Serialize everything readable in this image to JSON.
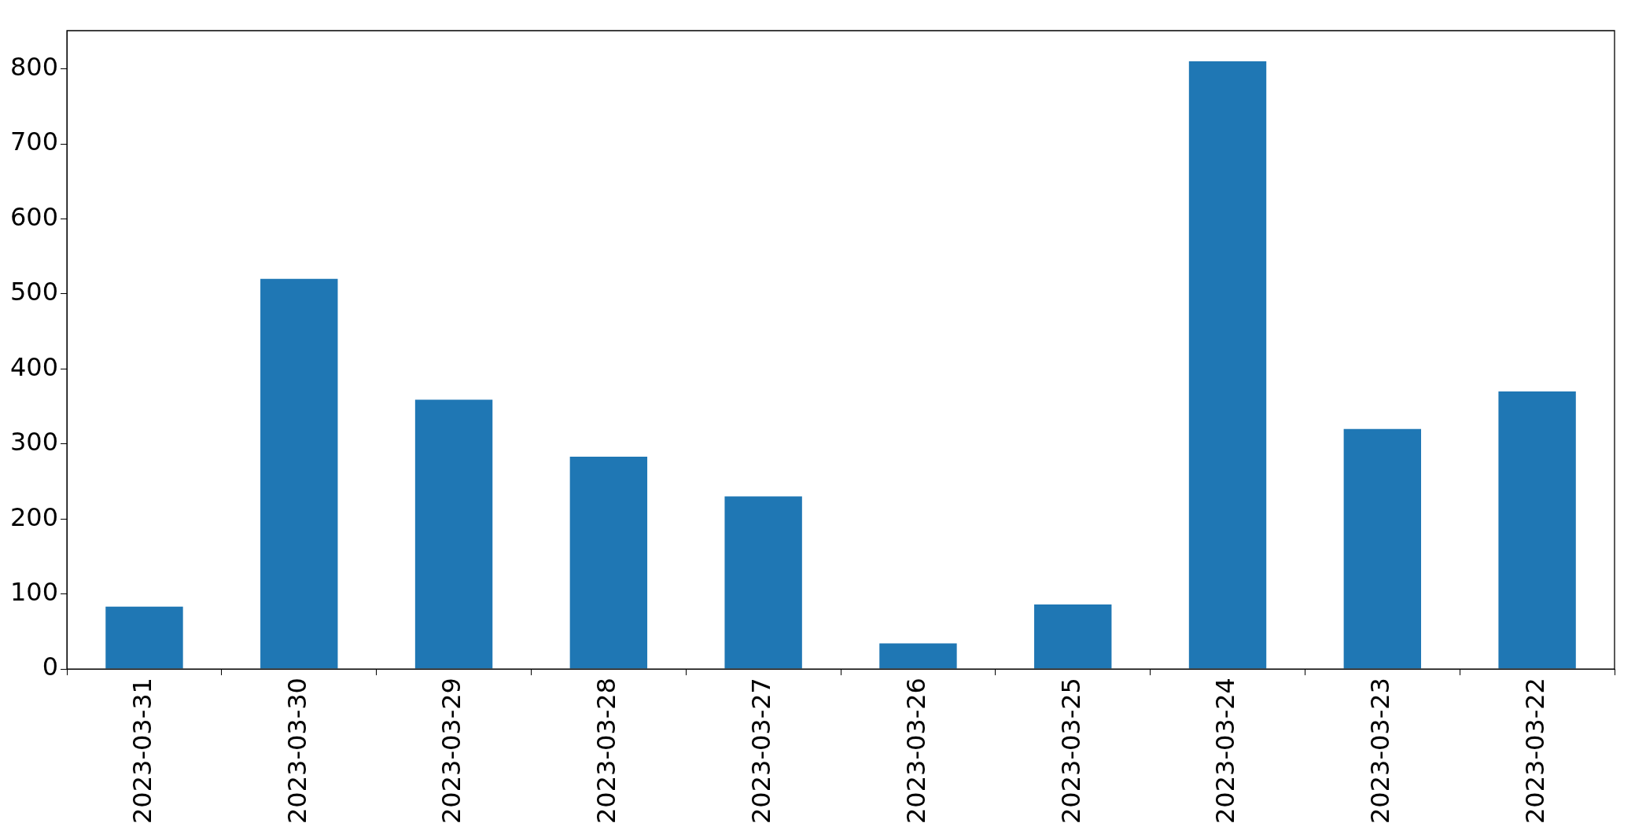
{
  "chart_data": {
    "type": "bar",
    "categories": [
      "2023-03-31",
      "2023-03-30",
      "2023-03-29",
      "2023-03-28",
      "2023-03-27",
      "2023-03-26",
      "2023-03-25",
      "2023-03-24",
      "2023-03-23",
      "2023-03-22"
    ],
    "values": [
      83,
      520,
      359,
      283,
      230,
      34,
      86,
      810,
      320,
      370
    ],
    "color": "#1f77b4",
    "ylim": [
      0,
      851
    ],
    "yticks": [
      0,
      100,
      200,
      300,
      400,
      500,
      600,
      700,
      800
    ],
    "grid": false,
    "legend": false
  }
}
